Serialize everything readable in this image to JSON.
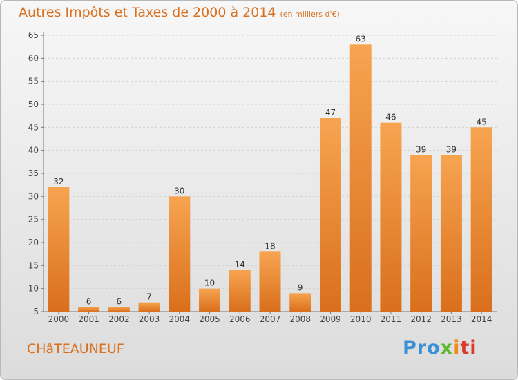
{
  "title": "Autres Impôts et Taxes de 2000 à 2014",
  "subtitle": "(en milliers d'€)",
  "town": "CHâTEAUNEUF",
  "logo": {
    "p1": "Pro",
    "p2": "x",
    "p3": "i",
    "p4": "ti"
  },
  "colors": {
    "bar_top": "#f7a450",
    "bar_bottom": "#d96f1c",
    "title": "#d9701e",
    "grid": "#d2d2d2"
  },
  "chart_data": {
    "type": "bar",
    "categories": [
      "2000",
      "2001",
      "2002",
      "2003",
      "2004",
      "2005",
      "2006",
      "2007",
      "2008",
      "2009",
      "2010",
      "2011",
      "2012",
      "2013",
      "2014"
    ],
    "values": [
      32,
      6,
      6,
      7,
      30,
      10,
      14,
      18,
      9,
      47,
      63,
      46,
      39,
      39,
      45
    ],
    "ylim": [
      5,
      65
    ],
    "yticks": [
      5,
      10,
      15,
      20,
      25,
      30,
      35,
      40,
      45,
      50,
      55,
      60,
      65
    ],
    "grid": true,
    "xlabel": "",
    "ylabel": ""
  }
}
